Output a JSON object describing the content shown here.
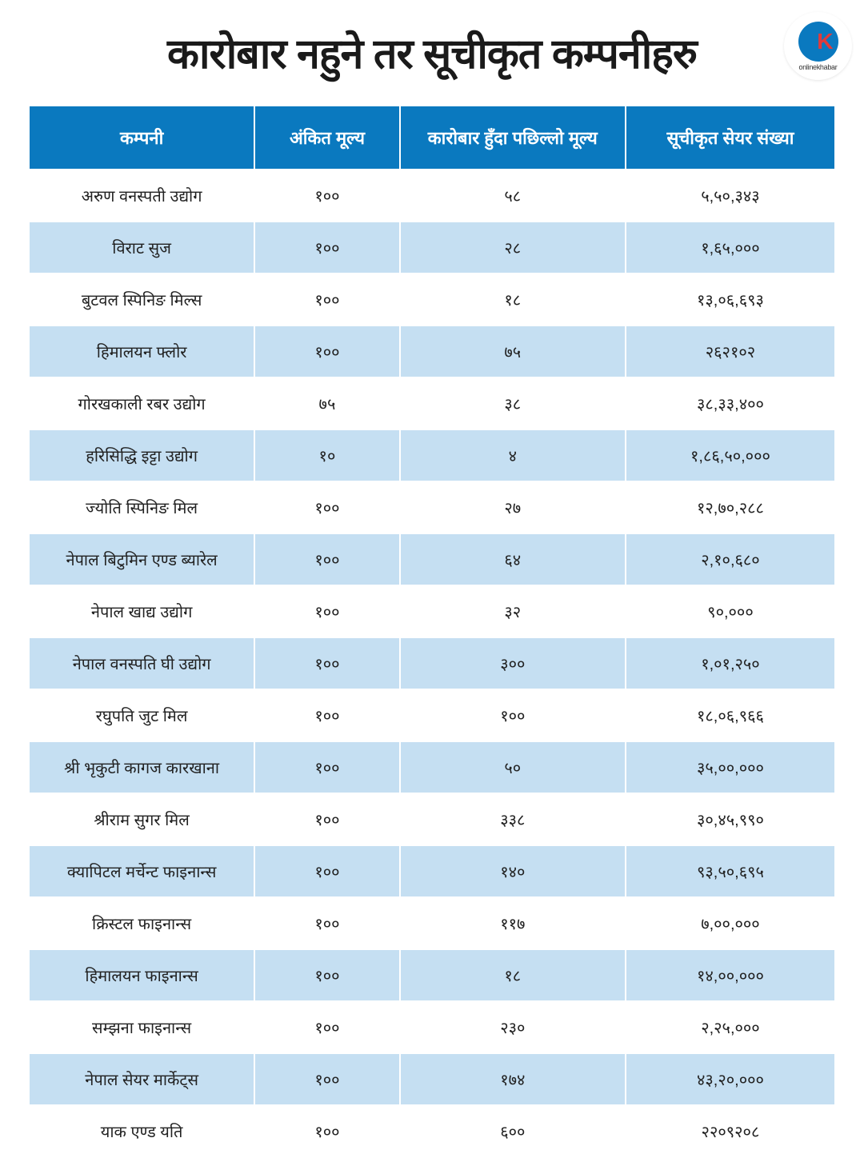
{
  "title": "कारोबार नहुने तर सूचीकृत कम्पनीहरु",
  "logo": {
    "letter": "K",
    "text": "onlinekhabar"
  },
  "table": {
    "type": "table",
    "header_bg_color": "#0a79bf",
    "header_text_color": "#ffffff",
    "row_alt_colors": [
      "#ffffff",
      "#c5dff2"
    ],
    "border_color": "#ffffff",
    "title_fontsize": 52,
    "header_fontsize": 22,
    "cell_fontsize": 20,
    "column_widths": [
      "28%",
      "18%",
      "28%",
      "26%"
    ],
    "columns": [
      "कम्पनी",
      "अंकित मूल्य",
      "कारोबार हुँदा पछिल्लो मूल्य",
      "सूचीकृत सेयर संख्या"
    ],
    "rows": [
      [
        "अरुण वनस्पती उद्योग",
        "१००",
        "५८",
        "५,५०,३४३"
      ],
      [
        "विराट सुज",
        "१००",
        "२८",
        "१,६५,०००"
      ],
      [
        "बुटवल स्पिनिङ मिल्स",
        "१००",
        "१८",
        "१३,०६,६९३"
      ],
      [
        "हिमालयन फ्लोर",
        "१००",
        "७५",
        "२६२१०२"
      ],
      [
        "गोरखकाली रबर उद्योग",
        "७५",
        "३८",
        "३८,३३,४००"
      ],
      [
        "हरिसिद्धि इट्टा उद्योग",
        "१०",
        "४",
        "१,८६,५०,०००"
      ],
      [
        "ज्योति स्पिनिङ मिल",
        "१००",
        "२७",
        "१२,७०,२८८"
      ],
      [
        "नेपाल बिटुमिन एण्ड ब्यारेल",
        "१००",
        "६४",
        "२,१०,६८०"
      ],
      [
        "नेपाल खाद्य उद्योग",
        "१००",
        "३२",
        "९०,०००"
      ],
      [
        "नेपाल वनस्पति घी उद्योग",
        "१००",
        "३००",
        "१,०१,२५०"
      ],
      [
        "रघुपति जुट मिल",
        "१००",
        "१००",
        "१८,०६,९६६"
      ],
      [
        "श्री भृकुटी कागज कारखाना",
        "१००",
        "५०",
        "३५,००,०००"
      ],
      [
        "श्रीराम सुगर मिल",
        "१००",
        "३३८",
        "३०,४५,९९०"
      ],
      [
        "क्यापिटल मर्चेन्ट फाइनान्स",
        "१००",
        "१४०",
        "९३,५०,६९५"
      ],
      [
        "क्रिस्टल फाइनान्स",
        "१००",
        "११७",
        "७,००,०००"
      ],
      [
        "हिमालयन फाइनान्स",
        "१००",
        "१८",
        "१४,००,०००"
      ],
      [
        "सम्झना फाइनान्स",
        "१००",
        "२३०",
        "२,२५,०००"
      ],
      [
        "नेपाल सेयर मार्केट्स",
        "१००",
        "१७४",
        "४३,२०,०००"
      ],
      [
        "याक एण्ड यति",
        "१००",
        "६००",
        "२२०९२०८"
      ]
    ]
  }
}
